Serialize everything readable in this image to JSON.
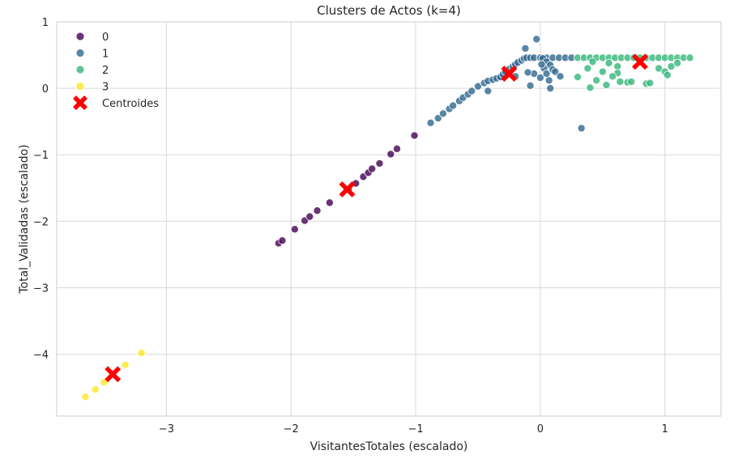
{
  "chart_data": {
    "type": "scatter",
    "title": "Clusters de Actos (k=4)",
    "xlabel": "VisitantesTotales (escalado)",
    "ylabel": "Total_Validadas (escalado)",
    "xlim": [
      -3.88,
      1.45
    ],
    "ylim": [
      -4.93,
      1.0
    ],
    "xticks": [
      -3,
      -2,
      -1,
      0,
      1
    ],
    "yticks": [
      1,
      0,
      -1,
      -2,
      -3,
      -4
    ],
    "grid": true,
    "legend_position": "top-left",
    "legend": [
      "0",
      "1",
      "2",
      "3",
      "Centroides"
    ],
    "series": [
      {
        "name": "0",
        "color": "#440154",
        "points": [
          [
            -2.1,
            -2.33
          ],
          [
            -2.07,
            -2.29
          ],
          [
            -1.97,
            -2.12
          ],
          [
            -1.89,
            -1.99
          ],
          [
            -1.85,
            -1.93
          ],
          [
            -1.79,
            -1.84
          ],
          [
            -1.69,
            -1.72
          ],
          [
            -1.54,
            -1.52
          ],
          [
            -1.48,
            -1.43
          ],
          [
            -1.42,
            -1.33
          ],
          [
            -1.38,
            -1.27
          ],
          [
            -1.35,
            -1.21
          ],
          [
            -1.29,
            -1.13
          ],
          [
            -1.2,
            -0.99
          ],
          [
            -1.15,
            -0.91
          ],
          [
            -1.01,
            -0.71
          ]
        ]
      },
      {
        "name": "1",
        "color": "#31688e",
        "points": [
          [
            -0.88,
            -0.52
          ],
          [
            -0.82,
            -0.45
          ],
          [
            -0.78,
            -0.38
          ],
          [
            -0.73,
            -0.31
          ],
          [
            -0.7,
            -0.26
          ],
          [
            -0.65,
            -0.19
          ],
          [
            -0.62,
            -0.14
          ],
          [
            -0.58,
            -0.09
          ],
          [
            -0.55,
            -0.04
          ],
          [
            -0.5,
            0.03
          ],
          [
            -0.45,
            0.08
          ],
          [
            -0.42,
            0.11
          ],
          [
            -0.38,
            0.13
          ],
          [
            -0.35,
            0.15
          ],
          [
            -0.32,
            0.17
          ],
          [
            -0.3,
            0.21
          ],
          [
            -0.28,
            0.25
          ],
          [
            -0.25,
            0.29
          ],
          [
            -0.22,
            0.33
          ],
          [
            -0.2,
            0.36
          ],
          [
            -0.18,
            0.39
          ],
          [
            -0.15,
            0.42
          ],
          [
            -0.13,
            0.45
          ],
          [
            -0.11,
            0.46
          ],
          [
            -0.08,
            0.46
          ],
          [
            -0.05,
            0.46
          ],
          [
            0.0,
            0.46
          ],
          [
            0.05,
            0.46
          ],
          [
            0.1,
            0.46
          ],
          [
            0.15,
            0.46
          ],
          [
            0.2,
            0.46
          ],
          [
            0.25,
            0.46
          ],
          [
            -0.12,
            0.6
          ],
          [
            -0.03,
            0.74
          ],
          [
            0.02,
            0.45
          ],
          [
            0.05,
            0.4
          ],
          [
            0.08,
            0.35
          ],
          [
            0.1,
            0.28
          ],
          [
            0.03,
            0.3
          ],
          [
            -0.05,
            0.22
          ],
          [
            0.0,
            0.16
          ],
          [
            0.07,
            0.12
          ],
          [
            -0.1,
            0.24
          ],
          [
            0.05,
            0.22
          ],
          [
            0.12,
            0.25
          ],
          [
            0.16,
            0.18
          ],
          [
            -0.08,
            0.04
          ],
          [
            0.08,
            0.0
          ],
          [
            -0.42,
            -0.04
          ],
          [
            0.33,
            -0.6
          ],
          [
            -0.2,
            0.18
          ],
          [
            0.01,
            0.36
          ]
        ]
      },
      {
        "name": "2",
        "color": "#35b779",
        "points": [
          [
            0.3,
            0.46
          ],
          [
            0.35,
            0.46
          ],
          [
            0.4,
            0.46
          ],
          [
            0.45,
            0.46
          ],
          [
            0.5,
            0.46
          ],
          [
            0.55,
            0.46
          ],
          [
            0.6,
            0.46
          ],
          [
            0.65,
            0.46
          ],
          [
            0.7,
            0.46
          ],
          [
            0.75,
            0.46
          ],
          [
            0.8,
            0.46
          ],
          [
            0.85,
            0.46
          ],
          [
            0.9,
            0.46
          ],
          [
            0.95,
            0.46
          ],
          [
            1.0,
            0.46
          ],
          [
            1.05,
            0.46
          ],
          [
            1.1,
            0.46
          ],
          [
            1.15,
            0.46
          ],
          [
            1.2,
            0.46
          ],
          [
            0.42,
            0.4
          ],
          [
            0.55,
            0.38
          ],
          [
            0.62,
            0.33
          ],
          [
            0.38,
            0.3
          ],
          [
            0.5,
            0.25
          ],
          [
            0.62,
            0.23
          ],
          [
            0.58,
            0.18
          ],
          [
            0.3,
            0.17
          ],
          [
            0.45,
            0.12
          ],
          [
            0.64,
            0.1
          ],
          [
            0.7,
            0.09
          ],
          [
            0.73,
            0.1
          ],
          [
            0.53,
            0.05
          ],
          [
            0.4,
            0.01
          ],
          [
            0.85,
            0.07
          ],
          [
            0.88,
            0.08
          ],
          [
            0.95,
            0.3
          ],
          [
            1.0,
            0.25
          ],
          [
            1.02,
            0.2
          ],
          [
            1.05,
            0.33
          ],
          [
            1.1,
            0.38
          ]
        ]
      },
      {
        "name": "3",
        "color": "#fde725",
        "points": [
          [
            -3.65,
            -4.64
          ],
          [
            -3.57,
            -4.53
          ],
          [
            -3.5,
            -4.42
          ],
          [
            -3.33,
            -4.16
          ],
          [
            -3.2,
            -3.98
          ]
        ]
      }
    ],
    "centroids": {
      "name": "Centroides",
      "color": "#ff0000",
      "points": [
        [
          -3.43,
          -4.3
        ],
        [
          -1.55,
          -1.52
        ],
        [
          -0.25,
          0.22
        ],
        [
          0.8,
          0.4
        ]
      ]
    }
  }
}
